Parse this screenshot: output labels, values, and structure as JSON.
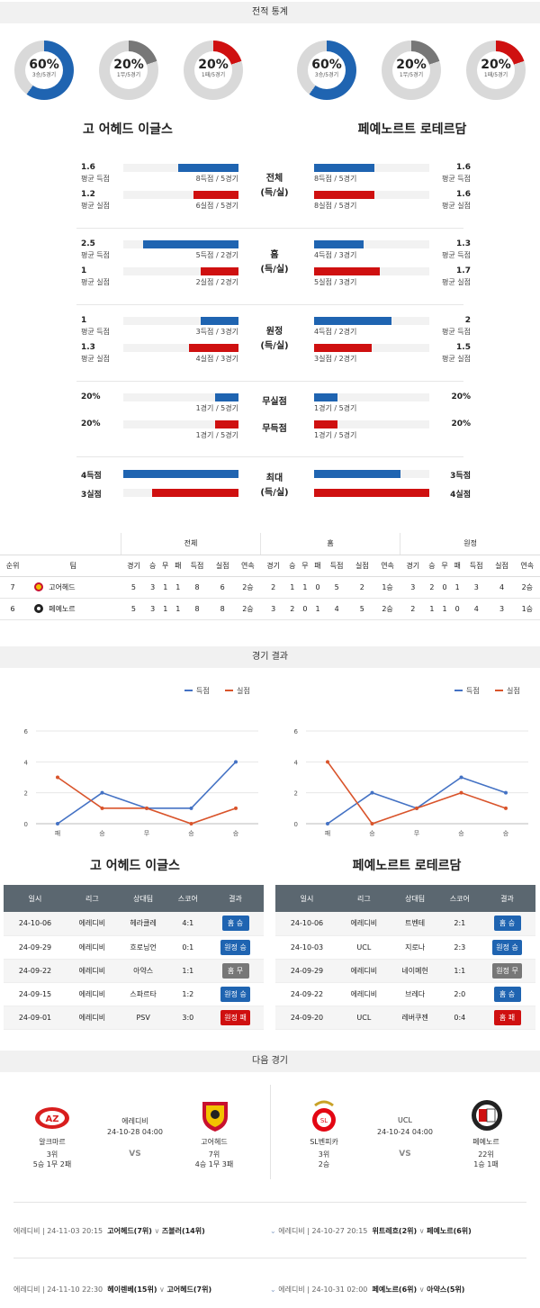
{
  "sections": {
    "stats": "전적 통계",
    "results": "경기 결과",
    "next": "다음 경기"
  },
  "teams": {
    "home": "고 어헤드 이글스",
    "away": "페예노르트 로테르담"
  },
  "donuts": {
    "home": [
      {
        "pct": "60%",
        "sub": "3승/5경기",
        "color": "#1f64b1",
        "value": 60
      },
      {
        "pct": "20%",
        "sub": "1무/5경기",
        "color": "#777777",
        "value": 20
      },
      {
        "pct": "20%",
        "sub": "1패/5경기",
        "color": "#cf1010",
        "value": 20
      }
    ],
    "away": [
      {
        "pct": "60%",
        "sub": "3승/5경기",
        "color": "#1f64b1",
        "value": 60
      },
      {
        "pct": "20%",
        "sub": "1무/5경기",
        "color": "#777777",
        "value": 20
      },
      {
        "pct": "20%",
        "sub": "1패/5경기",
        "color": "#cf1010",
        "value": 20
      }
    ]
  },
  "bar_groups": [
    {
      "mid": [
        "전체",
        "(득/실)"
      ],
      "rows": [
        {
          "home_num": "1.6",
          "home_lbl": "평균 득점",
          "home_cnt": "8득점 / 5경기",
          "home_frac": 0.52,
          "color": "blue",
          "away_num": "1.6",
          "away_lbl": "평균 득점",
          "away_cnt": "8득점 / 5경기",
          "away_frac": 0.52
        },
        {
          "home_num": "1.2",
          "home_lbl": "평균 실점",
          "home_cnt": "6실점 / 5경기",
          "home_frac": 0.39,
          "color": "red",
          "away_num": "1.6",
          "away_lbl": "평균 실점",
          "away_cnt": "8실점 / 5경기",
          "away_frac": 0.52
        }
      ]
    },
    {
      "mid": [
        "홈",
        "(득/실)"
      ],
      "rows": [
        {
          "home_num": "2.5",
          "home_lbl": "평균 득점",
          "home_cnt": "5득점 / 2경기",
          "home_frac": 0.83,
          "color": "blue",
          "away_num": "1.3",
          "away_lbl": "평균 득점",
          "away_cnt": "4득점 / 3경기",
          "away_frac": 0.43
        },
        {
          "home_num": "1",
          "home_lbl": "평균 실점",
          "home_cnt": "2실점 / 2경기",
          "home_frac": 0.33,
          "color": "red",
          "away_num": "1.7",
          "away_lbl": "평균 실점",
          "away_cnt": "5실점 / 3경기",
          "away_frac": 0.57
        }
      ]
    },
    {
      "mid": [
        "원정",
        "(득/실)"
      ],
      "rows": [
        {
          "home_num": "1",
          "home_lbl": "평균 득점",
          "home_cnt": "3득점 / 3경기",
          "home_frac": 0.33,
          "color": "blue",
          "away_num": "2",
          "away_lbl": "평균 득점",
          "away_cnt": "4득점 / 2경기",
          "away_frac": 0.67
        },
        {
          "home_num": "1.3",
          "home_lbl": "평균 실점",
          "home_cnt": "4실점 / 3경기",
          "home_frac": 0.43,
          "color": "red",
          "away_num": "1.5",
          "away_lbl": "평균 실점",
          "away_cnt": "3실점 / 2경기",
          "away_frac": 0.5
        }
      ]
    }
  ],
  "nil_rows": [
    {
      "mid": "무실점",
      "home_num": "20%",
      "home_cnt": "1경기 / 5경기",
      "home_frac": 0.2,
      "color": "blue",
      "away_num": "20%",
      "away_cnt": "1경기 / 5경기",
      "away_frac": 0.2
    },
    {
      "mid": "무득점",
      "home_num": "20%",
      "home_cnt": "1경기 / 5경기",
      "home_frac": 0.2,
      "color": "red",
      "away_num": "20%",
      "away_cnt": "1경기 / 5경기",
      "away_frac": 0.2
    }
  ],
  "max": {
    "mid": [
      "최대",
      "(득/실)"
    ],
    "rows": [
      {
        "home": "4득점",
        "home_frac": 1.0,
        "color": "blue",
        "away": "3득점",
        "away_frac": 0.75
      },
      {
        "home": "3실점",
        "home_frac": 0.75,
        "color": "red",
        "away": "4실점",
        "away_frac": 1.0
      }
    ]
  },
  "standings": {
    "groups": [
      "전체",
      "홈",
      "원정"
    ],
    "header": [
      "순위",
      "팀",
      "경기",
      "승",
      "무",
      "패",
      "득점",
      "실점",
      "연속",
      "경기",
      "승",
      "무",
      "패",
      "득점",
      "실점",
      "연속",
      "경기",
      "승",
      "무",
      "패",
      "득점",
      "실점",
      "연속"
    ],
    "rows": [
      {
        "rank": "7",
        "team": "고어헤드",
        "logo": "goahead-logo",
        "vals": [
          "5",
          "3",
          "1",
          "1",
          "8",
          "6",
          "2승",
          "2",
          "1",
          "1",
          "0",
          "5",
          "2",
          "1승",
          "3",
          "2",
          "0",
          "1",
          "3",
          "4",
          "2승"
        ]
      },
      {
        "rank": "6",
        "team": "페예노르",
        "logo": "feyenoord-logo",
        "vals": [
          "5",
          "3",
          "1",
          "1",
          "8",
          "8",
          "2승",
          "3",
          "2",
          "0",
          "1",
          "4",
          "5",
          "2승",
          "2",
          "1",
          "1",
          "0",
          "4",
          "3",
          "1승"
        ]
      }
    ]
  },
  "chart_data": [
    {
      "type": "line",
      "team": "고 어헤드 이글스",
      "categories": [
        "패",
        "승",
        "무",
        "승",
        "승"
      ],
      "ylim": [
        0,
        6
      ],
      "yticks": [
        0,
        2,
        4,
        6
      ],
      "series": [
        {
          "name": "득점",
          "color": "#4472c4",
          "values": [
            0,
            2,
            1,
            1,
            4
          ]
        },
        {
          "name": "실점",
          "color": "#d9542b",
          "values": [
            3,
            1,
            1,
            0,
            1
          ]
        }
      ],
      "legend": "top-right"
    },
    {
      "type": "line",
      "team": "페예노르트 로테르담",
      "categories": [
        "패",
        "승",
        "무",
        "승",
        "승"
      ],
      "ylim": [
        0,
        6
      ],
      "yticks": [
        0,
        2,
        4,
        6
      ],
      "series": [
        {
          "name": "득점",
          "color": "#4472c4",
          "values": [
            0,
            2,
            1,
            3,
            2
          ]
        },
        {
          "name": "실점",
          "color": "#d9542b",
          "values": [
            4,
            0,
            1,
            2,
            1
          ]
        }
      ],
      "legend": "top-right"
    }
  ],
  "results_header": [
    "일시",
    "리그",
    "상대팀",
    "스코어",
    "결과"
  ],
  "results": {
    "home": [
      {
        "date": "24-10-06",
        "league": "에레디비",
        "opp": "헤라클레",
        "score": "4:1",
        "result": "홈 승",
        "color": "blue"
      },
      {
        "date": "24-09-29",
        "league": "에레디비",
        "opp": "흐로닝언",
        "score": "0:1",
        "result": "원정 승",
        "color": "blue"
      },
      {
        "date": "24-09-22",
        "league": "에레디비",
        "opp": "아약스",
        "score": "1:1",
        "result": "홈 무",
        "color": "gray"
      },
      {
        "date": "24-09-15",
        "league": "에레디비",
        "opp": "스파르타",
        "score": "1:2",
        "result": "원정 승",
        "color": "blue"
      },
      {
        "date": "24-09-01",
        "league": "에레디비",
        "opp": "PSV",
        "score": "3:0",
        "result": "원정 패",
        "color": "red"
      }
    ],
    "away": [
      {
        "date": "24-10-06",
        "league": "에레디비",
        "opp": "트벤테",
        "score": "2:1",
        "result": "홈 승",
        "color": "blue"
      },
      {
        "date": "24-10-03",
        "league": "UCL",
        "opp": "지로나",
        "score": "2:3",
        "result": "원정 승",
        "color": "blue"
      },
      {
        "date": "24-09-29",
        "league": "에레디비",
        "opp": "네이메헌",
        "score": "1:1",
        "result": "원정 무",
        "color": "gray"
      },
      {
        "date": "24-09-22",
        "league": "에레디비",
        "opp": "브레다",
        "score": "2:0",
        "result": "홈 승",
        "color": "blue"
      },
      {
        "date": "24-09-20",
        "league": "UCL",
        "opp": "레버쿠젠",
        "score": "0:4",
        "result": "홈 패",
        "color": "red"
      }
    ]
  },
  "next_matches": [
    {
      "league": "에레디비",
      "date": "24-10-28 04:00",
      "vs": "VS",
      "left": {
        "name": "알크마르",
        "rank": "3위",
        "record": "5승 1무 2패"
      },
      "right": {
        "name": "고어헤드",
        "rank": "7위",
        "record": "4승 1무 3패"
      }
    },
    {
      "league": "UCL",
      "date": "24-10-24 04:00",
      "vs": "VS",
      "left": {
        "name": "SL벤피카",
        "rank": "3위",
        "record": "2승"
      },
      "right": {
        "name": "페예노르",
        "rank": "22위",
        "record": "1승 1패"
      }
    }
  ],
  "upcoming": [
    {
      "left_info": "에레디비 | 24-11-03 20:15",
      "left_home": "고어헤드(7위)",
      "left_away": "즈볼러(14위)",
      "right_info": "에레디비 | 24-10-27 20:15",
      "right_home": "위트레흐(2위)",
      "right_away": "페예노르(6위)"
    },
    {
      "left_info": "에레디비 | 24-11-10 22:30",
      "left_home": "헤이렌베(15위)",
      "left_away": "고어헤드(7위)",
      "right_info": "에레디비 | 24-10-31 02:00",
      "right_home": "페예노르(6위)",
      "right_away": "아약스(5위)"
    }
  ]
}
